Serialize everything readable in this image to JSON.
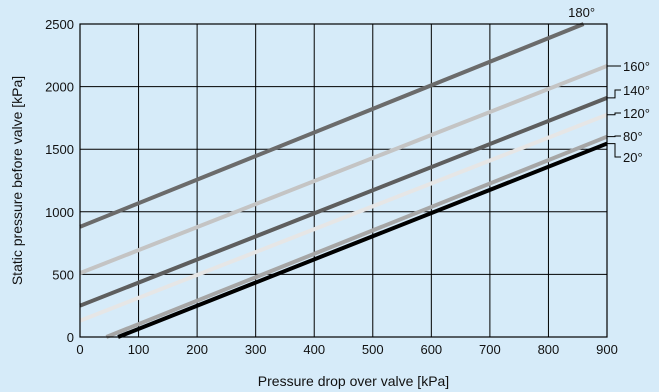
{
  "chart_data": {
    "type": "line",
    "xlabel": "Pressure drop over valve [kPa]",
    "ylabel": "Static pressure before valve [kPa]",
    "xlim": [
      0,
      900
    ],
    "ylim": [
      0,
      2500
    ],
    "xticks": [
      "0",
      "100",
      "200",
      "300",
      "400",
      "500",
      "600",
      "700",
      "800",
      "900"
    ],
    "yticks": [
      "0",
      "500",
      "1000",
      "1500",
      "2000",
      "2500"
    ],
    "grid": true,
    "background": "#d6ebf9",
    "series": [
      {
        "name": "180°",
        "color": "#6b6b6b",
        "x": [
          0,
          860
        ],
        "y": [
          880,
          2500
        ]
      },
      {
        "name": "160°",
        "color": "#c4c4c4",
        "x": [
          0,
          900
        ],
        "y": [
          510,
          2165
        ]
      },
      {
        "name": "140°",
        "color": "#5e5e5e",
        "x": [
          0,
          900
        ],
        "y": [
          250,
          1910
        ]
      },
      {
        "name": "120°",
        "color": "#e6e6e6",
        "x": [
          0,
          900
        ],
        "y": [
          130,
          1775
        ]
      },
      {
        "name": "80°",
        "color": "#a6a6a6",
        "x": [
          45,
          900
        ],
        "y": [
          0,
          1600
        ]
      },
      {
        "name": "20°",
        "color": "#000000",
        "x": [
          65,
          900
        ],
        "y": [
          0,
          1545
        ]
      }
    ]
  }
}
